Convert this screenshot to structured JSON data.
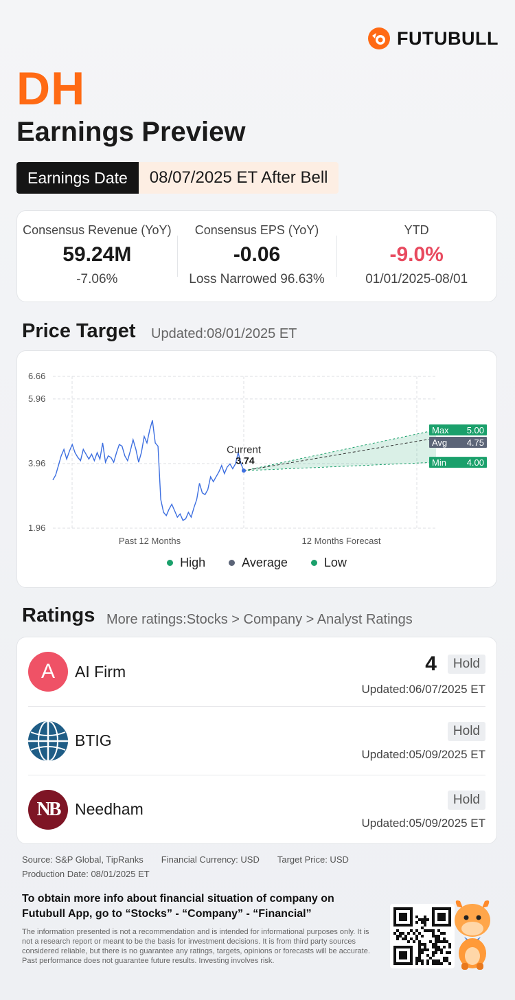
{
  "brand": {
    "name": "FUTUBULL",
    "accent": "#ff6a14"
  },
  "ticker": "DH",
  "title": "Earnings Preview",
  "earnings_date": {
    "label": "Earnings Date",
    "value": "08/07/2025 ET After Bell"
  },
  "consensus": [
    {
      "label": "Consensus Revenue (YoY)",
      "value": "59.24M",
      "sub": "-7.06%"
    },
    {
      "label": "Consensus EPS (YoY)",
      "value": "-0.06",
      "sub": "Loss Narrowed 96.63%"
    },
    {
      "label": "YTD",
      "value": "-9.0%",
      "sub": "01/01/2025-08/01",
      "value_color": "#e84a5f"
    }
  ],
  "price_target": {
    "title": "Price Target",
    "updated": "Updated:08/01/2025 ET",
    "current_label": "Current",
    "current_value": "3.74",
    "max_label": "Max",
    "max_value": "5.00",
    "avg_label": "Avg",
    "avg_value": "4.75",
    "min_label": "Min",
    "min_value": "4.00",
    "legend": {
      "high": "High",
      "average": "Average",
      "low": "Low"
    },
    "colors": {
      "high": "#1aa06b",
      "average": "#5b6477",
      "low": "#1aa06b",
      "line": "#3d6fe0"
    }
  },
  "chart_data": {
    "type": "line",
    "ytick_labels": [
      "6.66",
      "5.96",
      "3.96",
      "1.96"
    ],
    "xtick_labels": [
      "Past 12 Months",
      "12 Months Forecast"
    ],
    "ylim": [
      1.96,
      6.66
    ],
    "grid": true,
    "legend_position": "bottom",
    "series": [
      {
        "name": "Price",
        "values": [
          3.45,
          3.6,
          3.9,
          4.2,
          4.4,
          4.1,
          4.35,
          4.55,
          4.3,
          4.15,
          4.05,
          4.4,
          4.25,
          4.1,
          4.25,
          4.05,
          4.3,
          4.1,
          4.6,
          4.0,
          4.2,
          4.15,
          4.0,
          4.3,
          4.55,
          4.5,
          4.2,
          4.05,
          4.35,
          4.7,
          4.4,
          4.0,
          4.3,
          4.8,
          4.6,
          5.0,
          5.3,
          4.6,
          4.5,
          2.85,
          2.45,
          2.35,
          2.55,
          2.7,
          2.5,
          2.3,
          2.4,
          2.2,
          2.25,
          2.45,
          2.3,
          2.6,
          2.85,
          3.35,
          3.05,
          3.0,
          3.15,
          3.55,
          3.4,
          3.55,
          3.7,
          3.9,
          3.65,
          3.85,
          3.95,
          3.8,
          3.95,
          4.3,
          3.95,
          3.74
        ]
      }
    ],
    "forecast": {
      "current": 3.74,
      "high": 5.0,
      "average": 4.75,
      "low": 4.0
    }
  },
  "ratings": {
    "title": "Ratings",
    "more": "More ratings:Stocks > Company > Analyst Ratings",
    "items": [
      {
        "name": "AI Firm",
        "score": "4",
        "rating": "Hold",
        "updated": "Updated:06/07/2025 ET",
        "logo_letter": "A"
      },
      {
        "name": "BTIG",
        "score": "",
        "rating": "Hold",
        "updated": "Updated:05/09/2025 ET",
        "logo_letter": ""
      },
      {
        "name": "Needham",
        "score": "",
        "rating": "Hold",
        "updated": "Updated:05/09/2025 ET",
        "logo_letter": "NB"
      }
    ]
  },
  "footer": {
    "source": "Source: S&P Global, TipRanks",
    "currency": "Financial Currency: USD",
    "target_price": "Target Price: USD",
    "production": "Production Date: 08/01/2025 ET",
    "promo": "To obtain more info about financial situation of company on Futubull App, go to “Stocks” - “Company” - “Financial”",
    "disclaimer": "The information presented is not a recommendation and is intended for informational purposes only. It is not a research report or meant to be the basis for investment decisions. It is from third party sources considered reliable, but there is no guarantee any ratings, targets, opinions or forecasts will be accurate. Past performance does not guarantee future results. Investing involves risk."
  }
}
